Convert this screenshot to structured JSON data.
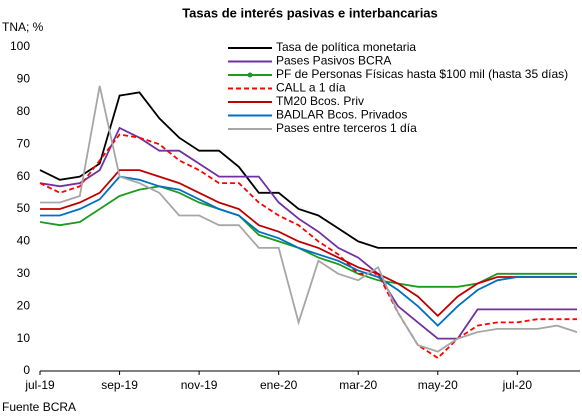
{
  "chart_data": {
    "type": "line",
    "title": "Tasas de interés pasivas e interbancarias",
    "y_label": "TNA; %",
    "source": "Fuente BCRA",
    "categories": [
      "jul-19",
      null,
      null,
      null,
      "sep-19",
      null,
      null,
      null,
      "nov-19",
      null,
      null,
      null,
      "ene-20",
      null,
      null,
      null,
      "mar-20",
      null,
      null,
      null,
      "may-20",
      null,
      null,
      null,
      "jul-20",
      null,
      null,
      null
    ],
    "ylim": [
      0,
      100
    ],
    "yticks": [
      0,
      10,
      20,
      30,
      40,
      50,
      60,
      70,
      80,
      90,
      100
    ],
    "legend": "top",
    "series": [
      {
        "name": "Tasa de política monetaria",
        "color": "#000000",
        "values": [
          62,
          59,
          60,
          64,
          85,
          86,
          78,
          72,
          68,
          68,
          63,
          55,
          55,
          50,
          48,
          44,
          40,
          38,
          38,
          38,
          38,
          38,
          38,
          38,
          38,
          38,
          38,
          38
        ]
      },
      {
        "name": "Pases Pasivos BCRA",
        "color": "#7030a0",
        "values": [
          58,
          57,
          58,
          62,
          75,
          72,
          68,
          68,
          64,
          60,
          60,
          60,
          52,
          47,
          43,
          38,
          35,
          30,
          20,
          15,
          10,
          10,
          19,
          19,
          19,
          19,
          19,
          19
        ]
      },
      {
        "name": "PF de Personas Físicas hasta $100 mil (hasta 35 días)",
        "color": "#1e9a1e",
        "marker": "circle",
        "values": [
          46,
          45,
          46,
          50,
          54,
          56,
          57,
          55,
          52,
          50,
          48,
          42,
          40,
          38,
          35,
          33,
          30,
          28,
          27,
          26,
          26,
          26,
          27,
          30,
          30,
          30,
          30,
          30
        ]
      },
      {
        "name": "CALL a 1 día",
        "color": "#ff0000",
        "dash": "dashed",
        "values": [
          58,
          55,
          57,
          65,
          73,
          72,
          70,
          65,
          62,
          58,
          58,
          52,
          48,
          45,
          40,
          36,
          30,
          30,
          18,
          8,
          4,
          10,
          14,
          15,
          15,
          16,
          16,
          16
        ]
      },
      {
        "name": "TM20 Bcos. Priv",
        "color": "#c00000",
        "values": [
          50,
          50,
          52,
          55,
          62,
          62,
          60,
          58,
          55,
          52,
          50,
          45,
          43,
          40,
          38,
          35,
          32,
          30,
          27,
          23,
          17,
          23,
          27,
          29,
          29,
          29,
          29,
          29
        ]
      },
      {
        "name": "BADLAR Bcos. Privados",
        "color": "#0070c0",
        "values": [
          48,
          48,
          50,
          53,
          60,
          59,
          57,
          56,
          53,
          50,
          48,
          43,
          41,
          38,
          36,
          34,
          31,
          29,
          25,
          20,
          14,
          20,
          25,
          28,
          29,
          29,
          29,
          29
        ]
      },
      {
        "name": "Pases entre terceros 1 día",
        "color": "#a6a6a6",
        "values": [
          52,
          52,
          54,
          88,
          60,
          58,
          55,
          48,
          48,
          45,
          45,
          38,
          38,
          15,
          34,
          30,
          28,
          32,
          18,
          8,
          6,
          10,
          12,
          13,
          13,
          13,
          14,
          12
        ]
      }
    ]
  }
}
